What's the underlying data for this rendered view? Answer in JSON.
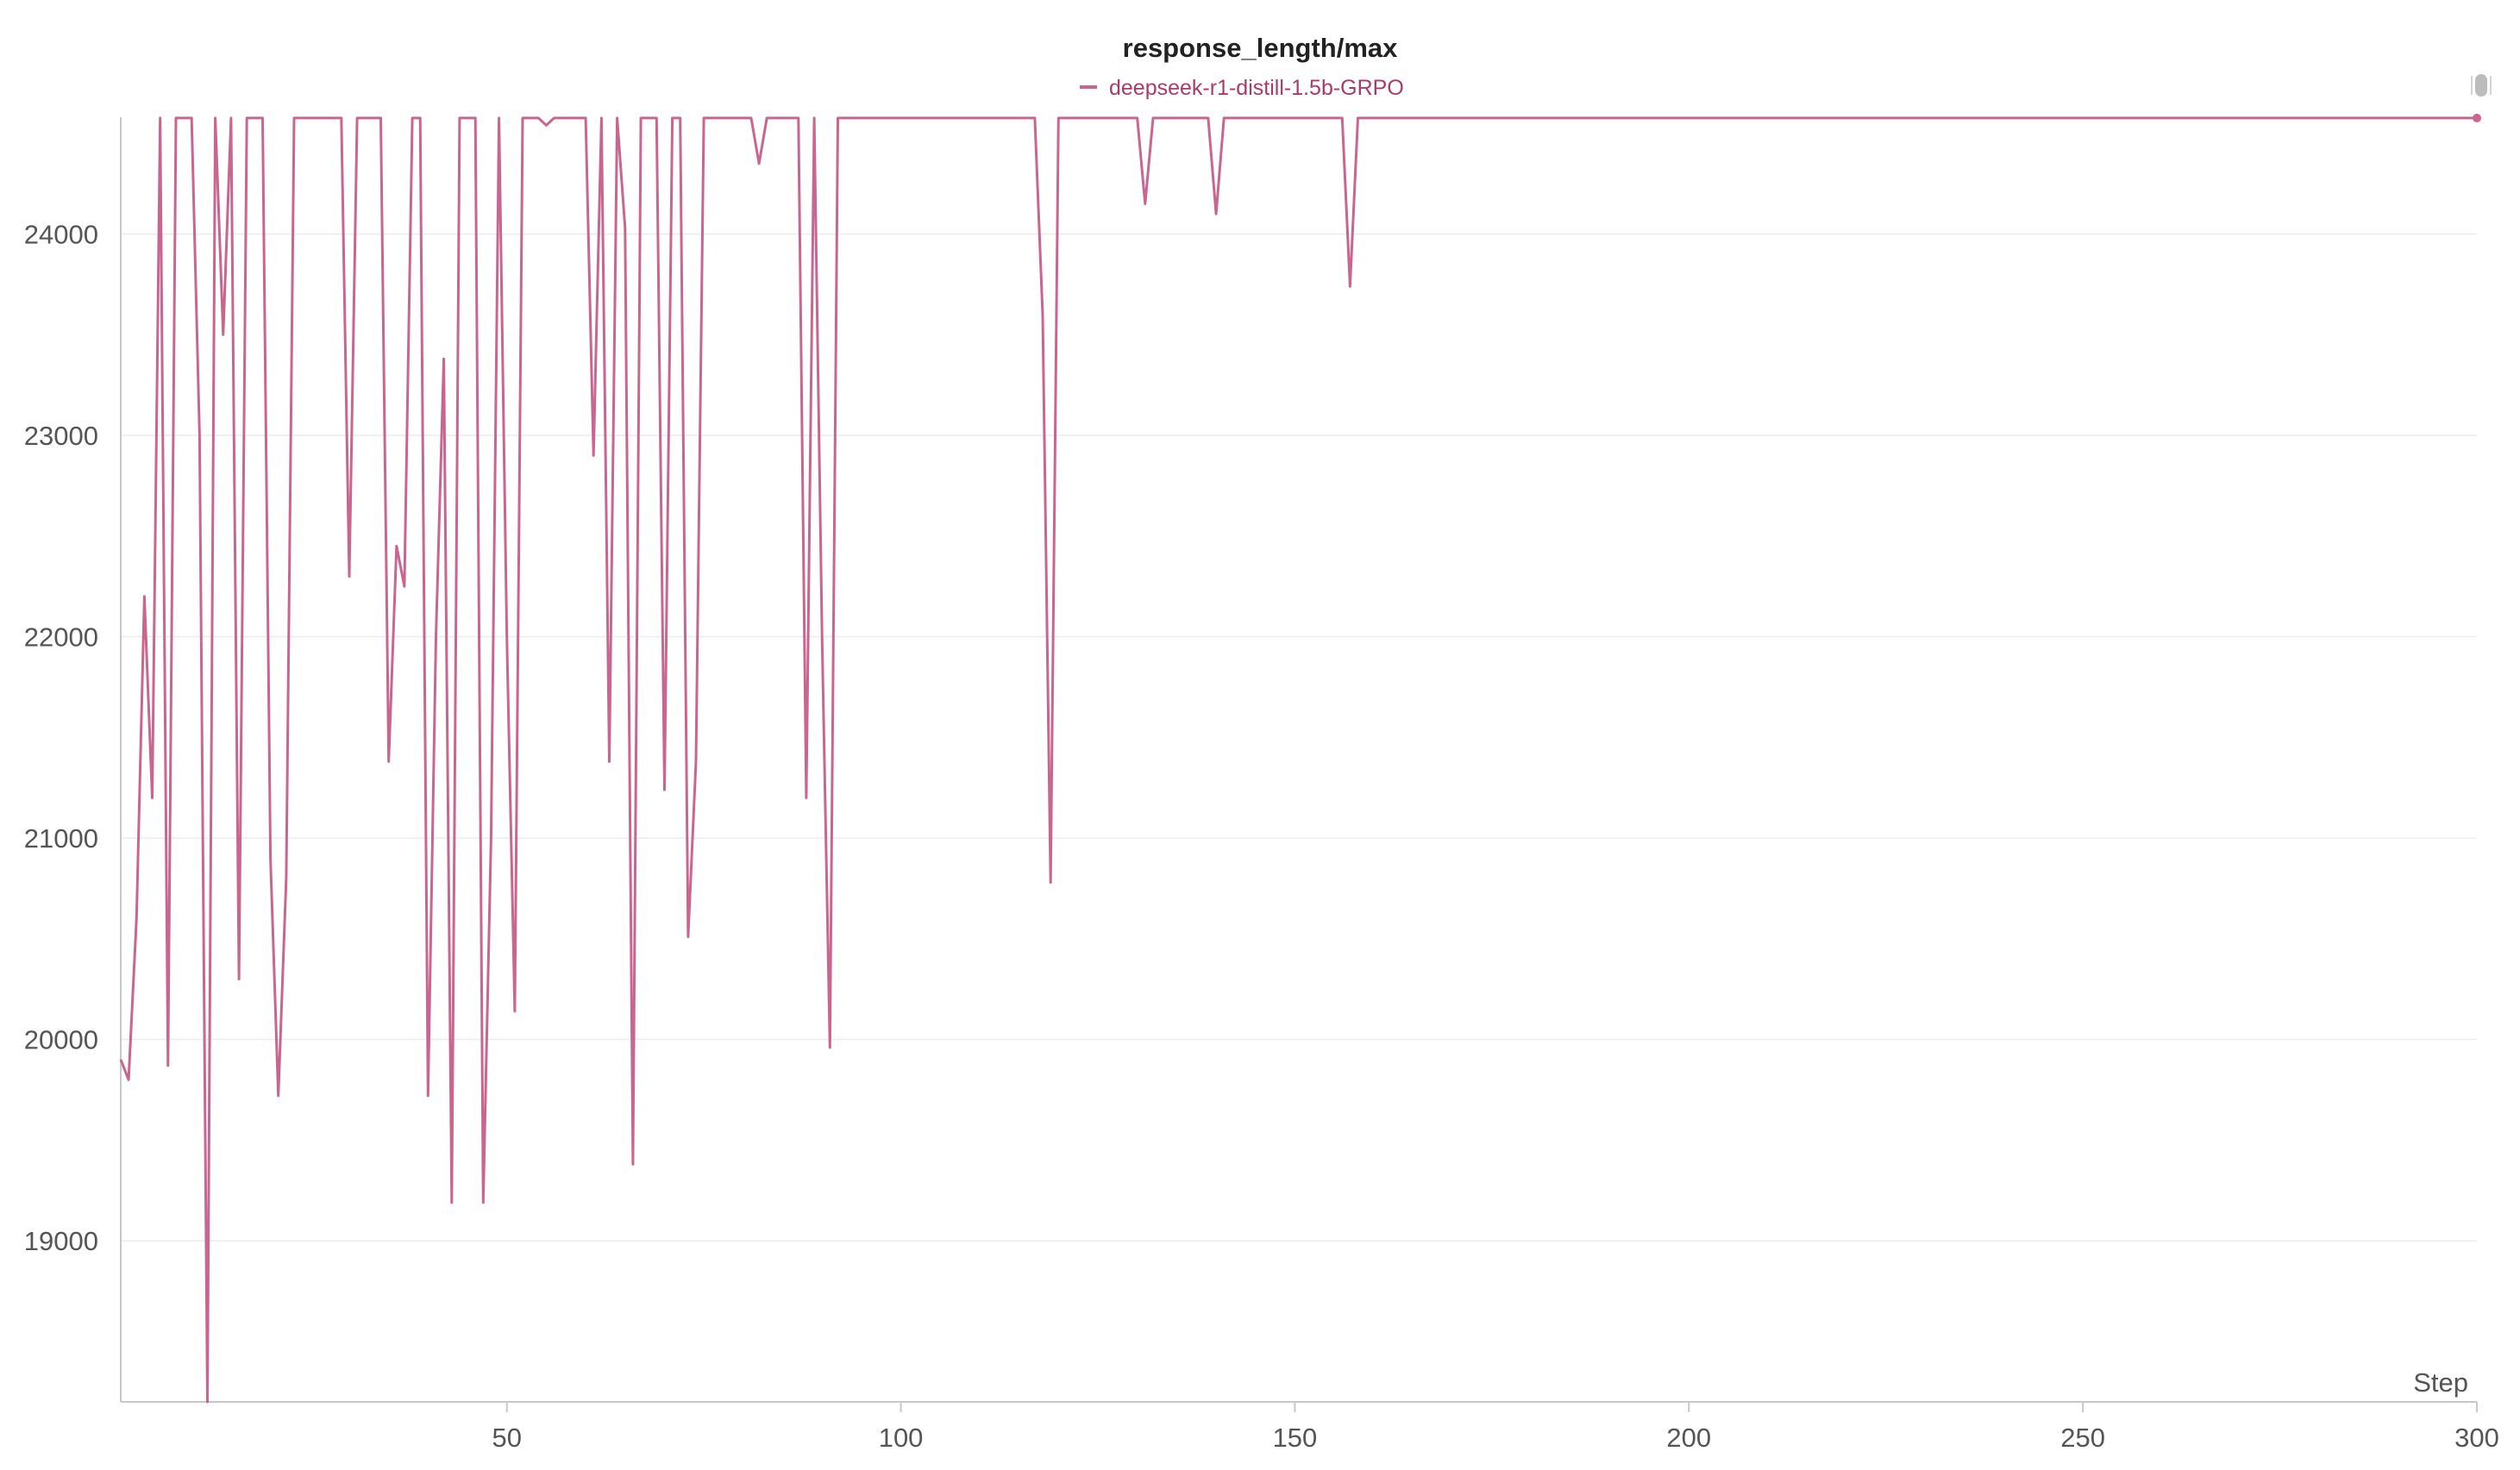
{
  "colors": {
    "series": "#c9668f",
    "legend_text": "#a83b6a",
    "title": "#222222",
    "axis": "#c8c8c8",
    "grid": "#ececec",
    "tick_text": "#555555"
  },
  "chart_data": {
    "type": "line",
    "title": "response_length/max",
    "xlabel": "Step",
    "ylabel": "",
    "xlim": [
      1,
      300
    ],
    "ylim": [
      18200,
      24580
    ],
    "xticks": [
      50,
      100,
      150,
      200,
      250,
      300
    ],
    "yticks": [
      19000,
      20000,
      21000,
      22000,
      23000,
      24000
    ],
    "grid": true,
    "legend_position": "top-center",
    "series": [
      {
        "name": "deepseek-r1-distill-1.5b-GRPO",
        "x": [
          1,
          2,
          3,
          4,
          5,
          6,
          7,
          8,
          9,
          10,
          11,
          12,
          13,
          14,
          15,
          16,
          17,
          18,
          19,
          20,
          21,
          22,
          23,
          24,
          25,
          26,
          27,
          28,
          29,
          30,
          31,
          32,
          33,
          34,
          35,
          36,
          37,
          38,
          39,
          40,
          41,
          42,
          43,
          44,
          45,
          46,
          47,
          48,
          49,
          50,
          51,
          52,
          53,
          54,
          55,
          56,
          57,
          58,
          59,
          60,
          61,
          62,
          63,
          64,
          65,
          66,
          67,
          68,
          69,
          70,
          71,
          72,
          73,
          74,
          75,
          76,
          77,
          78,
          79,
          80,
          81,
          82,
          83,
          84,
          85,
          86,
          87,
          88,
          89,
          90,
          91,
          92,
          93,
          94,
          95,
          96,
          97,
          98,
          99,
          100,
          101,
          102,
          103,
          104,
          105,
          106,
          107,
          108,
          109,
          110,
          111,
          112,
          113,
          114,
          115,
          116,
          117,
          118,
          119,
          120,
          121,
          122,
          123,
          124,
          125,
          126,
          127,
          128,
          129,
          130,
          131,
          132,
          133,
          134,
          135,
          136,
          137,
          138,
          139,
          140,
          141,
          142,
          143,
          144,
          145,
          146,
          147,
          148,
          149,
          150,
          151,
          152,
          153,
          154,
          155,
          156,
          157,
          158,
          159,
          160,
          300
        ],
        "y": [
          19900,
          19800,
          20600,
          22200,
          21200,
          24576,
          19870,
          24576,
          24576,
          24576,
          23000,
          18200,
          24576,
          23500,
          24576,
          20300,
          24576,
          24576,
          24576,
          20900,
          19720,
          20800,
          24576,
          24576,
          24576,
          24576,
          24576,
          24576,
          24576,
          22300,
          24576,
          24576,
          24576,
          24576,
          21380,
          22450,
          22250,
          24576,
          24576,
          19720,
          22000,
          23380,
          19190,
          24576,
          24576,
          24576,
          19190,
          21000,
          24576,
          22000,
          20140,
          24576,
          24576,
          24576,
          24540,
          24576,
          24576,
          24576,
          24576,
          24576,
          22900,
          24576,
          21380,
          24576,
          24030,
          19380,
          24576,
          24576,
          24576,
          21240,
          24576,
          24576,
          20510,
          21380,
          24576,
          24576,
          24576,
          24576,
          24576,
          24576,
          24576,
          24350,
          24576,
          24576,
          24576,
          24576,
          24576,
          21200,
          24576,
          22000,
          19960,
          24576,
          24576,
          24576,
          24576,
          24576,
          24576,
          24576,
          24576,
          24576,
          24576,
          24576,
          24576,
          24576,
          24576,
          24576,
          24576,
          24576,
          24576,
          24576,
          24576,
          24576,
          24576,
          24576,
          24576,
          24576,
          24576,
          23600,
          20780,
          24576,
          24576,
          24576,
          24576,
          24576,
          24576,
          24576,
          24576,
          24576,
          24576,
          24576,
          24150,
          24576,
          24576,
          24576,
          24576,
          24576,
          24576,
          24576,
          24576,
          24100,
          24576,
          24576,
          24576,
          24576,
          24576,
          24576,
          24576,
          24576,
          24576,
          24576,
          24576,
          24576,
          24576,
          24576,
          24576,
          24576,
          23740,
          24576,
          24576,
          24576,
          24576
        ]
      }
    ]
  }
}
